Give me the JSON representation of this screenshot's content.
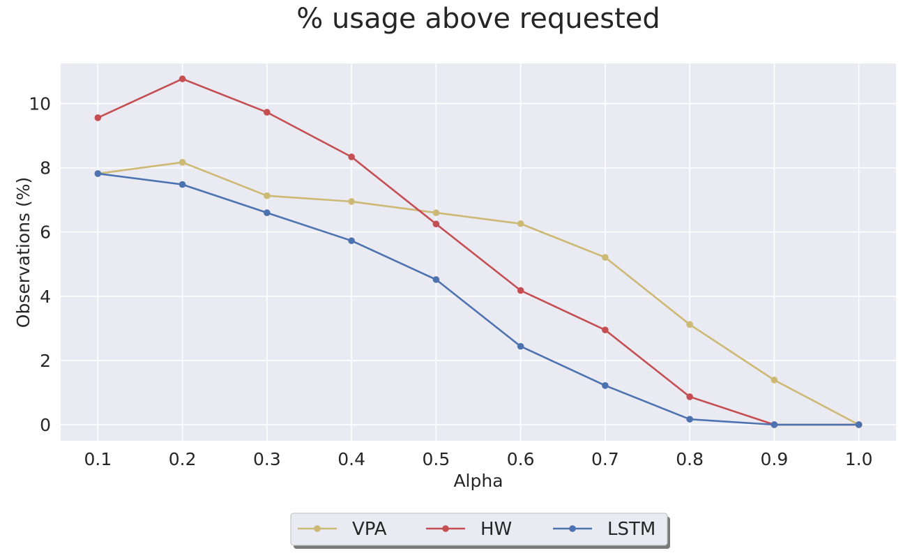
{
  "chart_data": {
    "type": "line",
    "title": "% usage above requested",
    "xlabel": "Alpha",
    "ylabel": "Observations (%)",
    "x": [
      0.1,
      0.2,
      0.3,
      0.4,
      0.5,
      0.6,
      0.7,
      0.8,
      0.9,
      1.0
    ],
    "x_tick_labels": [
      "0.1",
      "0.2",
      "0.3",
      "0.4",
      "0.5",
      "0.6",
      "0.7",
      "0.8",
      "0.9",
      "1.0"
    ],
    "y_ticks": [
      0,
      2,
      4,
      6,
      8,
      10
    ],
    "y_tick_labels": [
      "0",
      "2",
      "4",
      "6",
      "8",
      "10"
    ],
    "xlim": [
      0.056,
      1.044
    ],
    "ylim": [
      -0.5,
      11.25
    ],
    "grid": true,
    "legend_position": "bottom-center",
    "series": [
      {
        "name": "VPA",
        "color": "#ccb974",
        "values": [
          7.82,
          8.17,
          7.13,
          6.95,
          6.6,
          6.26,
          5.21,
          3.12,
          1.39,
          0.0
        ]
      },
      {
        "name": "HW",
        "color": "#c44e52",
        "values": [
          9.56,
          10.77,
          9.73,
          8.34,
          6.25,
          4.18,
          2.95,
          0.87,
          0.0,
          0.0
        ]
      },
      {
        "name": "LSTM",
        "color": "#4c72b0",
        "values": [
          7.82,
          7.48,
          6.6,
          5.73,
          4.52,
          2.44,
          1.22,
          0.17,
          0.0,
          0.0
        ]
      }
    ]
  }
}
